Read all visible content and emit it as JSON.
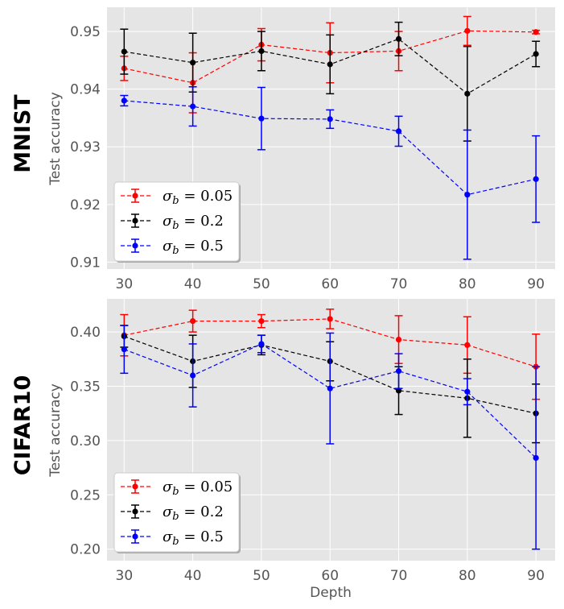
{
  "chart_data": [
    {
      "type": "line",
      "row_label": "MNIST",
      "ylabel": "Test accuracy",
      "xlabel": "",
      "x": [
        30,
        40,
        50,
        60,
        70,
        80,
        90
      ],
      "xticks": [
        "30",
        "40",
        "50",
        "60",
        "70",
        "80",
        "90"
      ],
      "xlim": [
        27.5,
        92.8
      ],
      "ylim": [
        0.9088,
        0.9542
      ],
      "yticks": [
        0.91,
        0.92,
        0.93,
        0.94,
        0.95
      ],
      "ytick_labels": [
        "0.91",
        "0.92",
        "0.93",
        "0.94",
        "0.95"
      ],
      "grid": true,
      "legend": "lower-left",
      "series": [
        {
          "name": "σb = 0.05",
          "sigma": "0.05",
          "color": "#ff0000",
          "values": [
            0.9436,
            0.9411,
            0.9477,
            0.9463,
            0.9466,
            0.9501,
            0.9499
          ],
          "errors": [
            0.0021,
            0.0052,
            0.0028,
            0.0052,
            0.0034,
            0.0025,
            0.0003
          ]
        },
        {
          "name": "σb = 0.2",
          "sigma": "0.2",
          "color": "#000000",
          "values": [
            0.9465,
            0.9446,
            0.9466,
            0.9443,
            0.9487,
            0.9392,
            0.9461
          ],
          "errors": [
            0.0039,
            0.0051,
            0.0034,
            0.0051,
            0.0029,
            0.0082,
            0.0022
          ]
        },
        {
          "name": "σb = 0.5",
          "sigma": "0.5",
          "color": "#0000ff",
          "values": [
            0.938,
            0.937,
            0.9349,
            0.9348,
            0.9327,
            0.9217,
            0.9244
          ],
          "errors": [
            0.0009,
            0.0034,
            0.0054,
            0.0016,
            0.0026,
            0.0112,
            0.0075
          ]
        }
      ]
    },
    {
      "type": "line",
      "row_label": "CIFAR10",
      "ylabel": "Test accuracy",
      "xlabel": "Depth",
      "x": [
        30,
        40,
        50,
        60,
        70,
        80,
        90
      ],
      "xticks": [
        "30",
        "40",
        "50",
        "60",
        "70",
        "80",
        "90"
      ],
      "xlim": [
        27.5,
        92.8
      ],
      "ylim": [
        0.1894,
        0.4305
      ],
      "yticks": [
        0.2,
        0.25,
        0.3,
        0.35,
        0.4
      ],
      "ytick_labels": [
        "0.20",
        "0.25",
        "0.30",
        "0.35",
        "0.40"
      ],
      "grid": true,
      "legend": "lower-left",
      "series": [
        {
          "name": "σb = 0.05",
          "sigma": "0.05",
          "color": "#ff0000",
          "values": [
            0.397,
            0.41,
            0.41,
            0.412,
            0.393,
            0.388,
            0.368
          ],
          "errors": [
            0.019,
            0.01,
            0.006,
            0.009,
            0.022,
            0.026,
            0.03
          ]
        },
        {
          "name": "σb = 0.2",
          "sigma": "0.2",
          "color": "#000000",
          "values": [
            0.396,
            0.373,
            0.388,
            0.373,
            0.346,
            0.339,
            0.325
          ],
          "errors": [
            0.01,
            0.024,
            0.009,
            0.018,
            0.022,
            0.036,
            0.027
          ]
        },
        {
          "name": "σb = 0.5",
          "sigma": "0.5",
          "color": "#0000ff",
          "values": [
            0.384,
            0.36,
            0.389,
            0.348,
            0.364,
            0.345,
            0.284
          ],
          "errors": [
            0.022,
            0.029,
            0.008,
            0.051,
            0.016,
            0.012,
            0.084
          ]
        }
      ]
    }
  ]
}
